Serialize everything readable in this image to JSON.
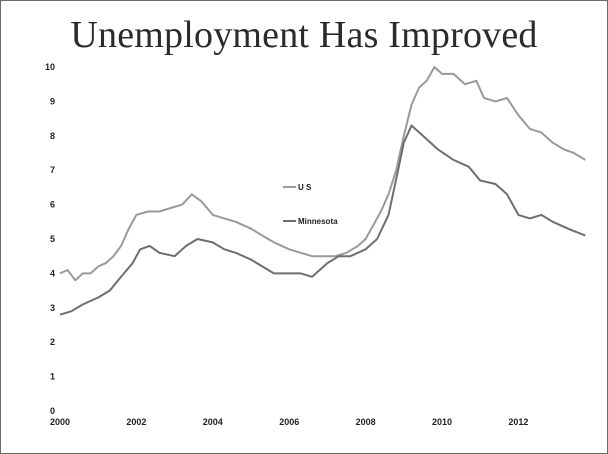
{
  "title": "Unemployment Has Improved",
  "chart_data": {
    "type": "line",
    "title": "Unemployment Has Improved",
    "xlabel": "",
    "ylabel": "",
    "xlim": [
      2000,
      2013.9
    ],
    "ylim": [
      0,
      10
    ],
    "x_ticks": [
      2000,
      2002,
      2004,
      2006,
      2008,
      2010,
      2012
    ],
    "y_ticks": [
      0,
      1,
      2,
      3,
      4,
      5,
      6,
      7,
      8,
      9,
      10
    ],
    "grid": false,
    "legend_position": "center",
    "series": [
      {
        "name": "U S",
        "color": "#9a9a9a",
        "points": [
          [
            2000.0,
            4.0
          ],
          [
            2000.2,
            4.1
          ],
          [
            2000.4,
            3.8
          ],
          [
            2000.6,
            4.0
          ],
          [
            2000.8,
            4.0
          ],
          [
            2001.0,
            4.2
          ],
          [
            2001.2,
            4.3
          ],
          [
            2001.4,
            4.5
          ],
          [
            2001.6,
            4.8
          ],
          [
            2001.8,
            5.3
          ],
          [
            2002.0,
            5.7
          ],
          [
            2002.3,
            5.8
          ],
          [
            2002.6,
            5.8
          ],
          [
            2002.9,
            5.9
          ],
          [
            2003.2,
            6.0
          ],
          [
            2003.45,
            6.3
          ],
          [
            2003.7,
            6.1
          ],
          [
            2004.0,
            5.7
          ],
          [
            2004.3,
            5.6
          ],
          [
            2004.6,
            5.5
          ],
          [
            2005.0,
            5.3
          ],
          [
            2005.3,
            5.1
          ],
          [
            2005.6,
            4.9
          ],
          [
            2006.0,
            4.7
          ],
          [
            2006.3,
            4.6
          ],
          [
            2006.6,
            4.5
          ],
          [
            2006.9,
            4.5
          ],
          [
            2007.2,
            4.5
          ],
          [
            2007.5,
            4.6
          ],
          [
            2007.8,
            4.8
          ],
          [
            2008.0,
            5.0
          ],
          [
            2008.2,
            5.4
          ],
          [
            2008.4,
            5.8
          ],
          [
            2008.6,
            6.3
          ],
          [
            2008.8,
            7.0
          ],
          [
            2009.0,
            8.0
          ],
          [
            2009.2,
            8.9
          ],
          [
            2009.4,
            9.4
          ],
          [
            2009.6,
            9.6
          ],
          [
            2009.8,
            10.0
          ],
          [
            2010.0,
            9.8
          ],
          [
            2010.3,
            9.8
          ],
          [
            2010.6,
            9.5
          ],
          [
            2010.9,
            9.6
          ],
          [
            2011.1,
            9.1
          ],
          [
            2011.4,
            9.0
          ],
          [
            2011.7,
            9.1
          ],
          [
            2012.0,
            8.6
          ],
          [
            2012.3,
            8.2
          ],
          [
            2012.6,
            8.1
          ],
          [
            2012.9,
            7.8
          ],
          [
            2013.2,
            7.6
          ],
          [
            2013.45,
            7.5
          ],
          [
            2013.75,
            7.3
          ]
        ]
      },
      {
        "name": "Minnesota",
        "color": "#6e6e6e",
        "points": [
          [
            2000.0,
            2.8
          ],
          [
            2000.3,
            2.9
          ],
          [
            2000.6,
            3.1
          ],
          [
            2001.0,
            3.3
          ],
          [
            2001.3,
            3.5
          ],
          [
            2001.6,
            3.9
          ],
          [
            2001.9,
            4.3
          ],
          [
            2002.1,
            4.7
          ],
          [
            2002.35,
            4.8
          ],
          [
            2002.6,
            4.6
          ],
          [
            2003.0,
            4.5
          ],
          [
            2003.3,
            4.8
          ],
          [
            2003.6,
            5.0
          ],
          [
            2004.0,
            4.9
          ],
          [
            2004.3,
            4.7
          ],
          [
            2004.6,
            4.6
          ],
          [
            2005.0,
            4.4
          ],
          [
            2005.3,
            4.2
          ],
          [
            2005.6,
            4.0
          ],
          [
            2006.0,
            4.0
          ],
          [
            2006.3,
            4.0
          ],
          [
            2006.6,
            3.9
          ],
          [
            2007.0,
            4.3
          ],
          [
            2007.3,
            4.5
          ],
          [
            2007.6,
            4.5
          ],
          [
            2008.0,
            4.7
          ],
          [
            2008.3,
            5.0
          ],
          [
            2008.6,
            5.7
          ],
          [
            2008.85,
            7.0
          ],
          [
            2009.0,
            7.8
          ],
          [
            2009.2,
            8.3
          ],
          [
            2009.5,
            8.0
          ],
          [
            2009.9,
            7.6
          ],
          [
            2010.3,
            7.3
          ],
          [
            2010.7,
            7.1
          ],
          [
            2011.0,
            6.7
          ],
          [
            2011.4,
            6.6
          ],
          [
            2011.7,
            6.3
          ],
          [
            2012.0,
            5.7
          ],
          [
            2012.3,
            5.6
          ],
          [
            2012.6,
            5.7
          ],
          [
            2012.9,
            5.5
          ],
          [
            2013.3,
            5.3
          ],
          [
            2013.75,
            5.1
          ]
        ]
      }
    ]
  }
}
